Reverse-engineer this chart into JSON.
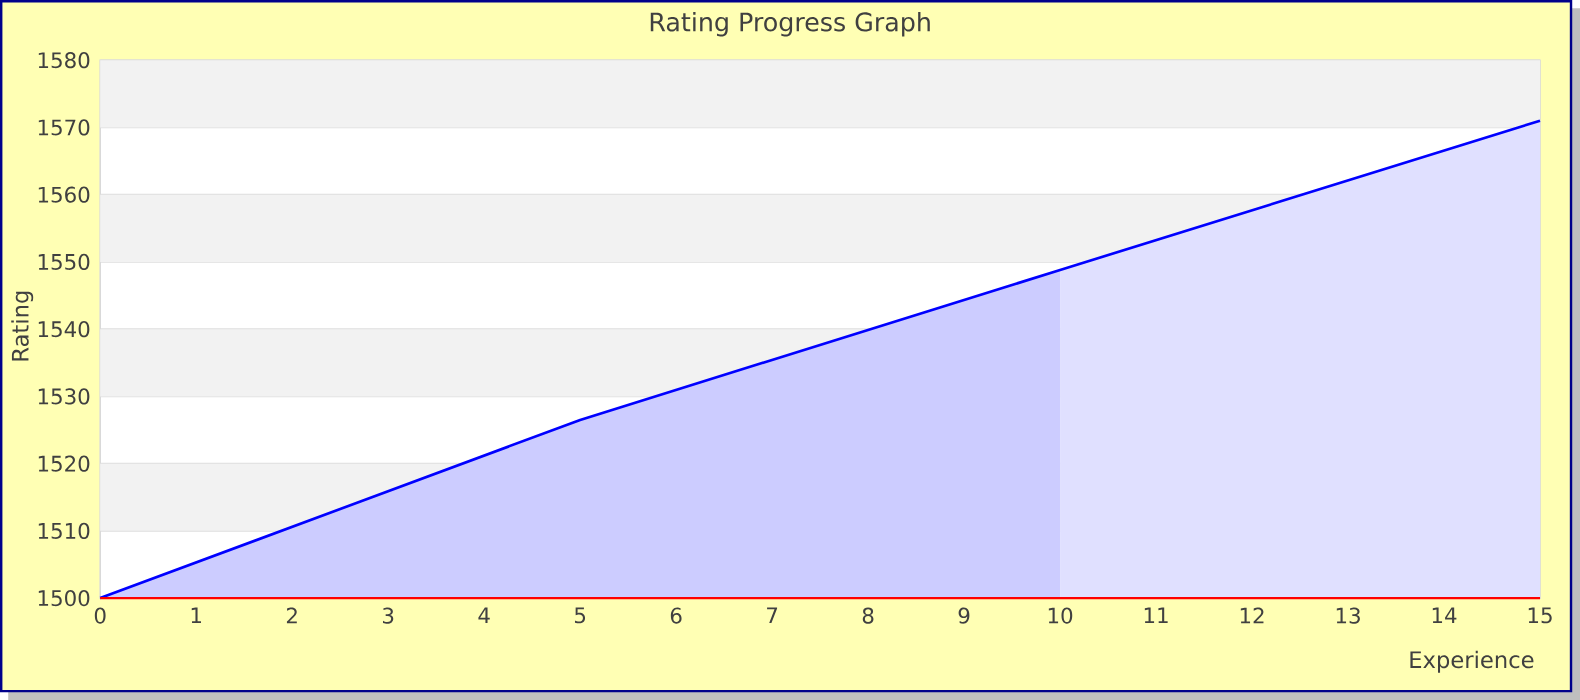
{
  "chart_data": {
    "type": "area",
    "title": "Rating Progress Graph",
    "xlabel": "Experience",
    "ylabel": "Rating",
    "xlim": [
      0,
      15
    ],
    "xticks": [
      0,
      1,
      2,
      3,
      4,
      5,
      6,
      7,
      8,
      9,
      10,
      11,
      12,
      13,
      14,
      15
    ],
    "ylim": [
      1500,
      1580
    ],
    "yticks": [
      1500,
      1510,
      1520,
      1530,
      1540,
      1550,
      1560,
      1570,
      1580
    ],
    "grid": "y",
    "bands": [
      {
        "axis": "y",
        "from": 1510,
        "to": 1520,
        "color": "#f2f2f2"
      },
      {
        "axis": "y",
        "from": 1530,
        "to": 1540,
        "color": "#f2f2f2"
      },
      {
        "axis": "y",
        "from": 1550,
        "to": 1560,
        "color": "#f2f2f2"
      },
      {
        "axis": "y",
        "from": 1570,
        "to": 1580,
        "color": "#f2f2f2"
      }
    ],
    "series": [
      {
        "color": "#ccccff",
        "x": [
          0,
          5,
          10
        ],
        "values": [
          1500,
          1526.5,
          1548.8
        ]
      },
      {
        "color": "#e0e0ff",
        "x": [
          10,
          15
        ],
        "values": [
          1548.8,
          1571
        ]
      },
      {
        "type": "line",
        "color": "#0000ff",
        "x": [
          0,
          5,
          10,
          15
        ],
        "values": [
          1500,
          1526.5,
          1548.8,
          1571
        ]
      }
    ]
  }
}
